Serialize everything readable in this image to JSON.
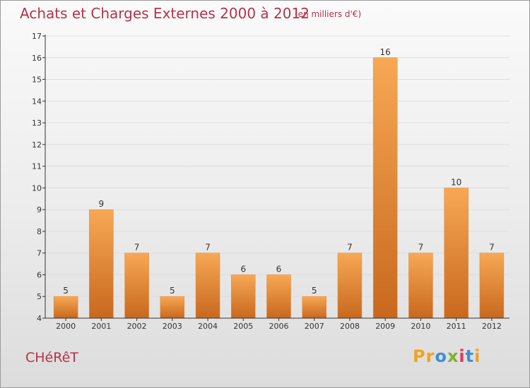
{
  "header": {
    "title": "Achats et Charges Externes 2000 à 2012",
    "unit": "(en milliers d'€)"
  },
  "footer": {
    "place": "CHéRêT",
    "brand_letters": [
      "P",
      "r",
      "o",
      "x",
      "i",
      "t",
      "i"
    ],
    "brand_colors": [
      "#f2a21c",
      "#f2a21c",
      "#3d8fd6",
      "#7ab32e",
      "#e8365d",
      "#3d8fd6",
      "#f2a21c"
    ]
  },
  "colors": {
    "bar_light": "#f7a855",
    "bar_dark": "#c8681e",
    "axis": "#333333",
    "grid": "#dedede",
    "text_accent": "#b8324a"
  },
  "chart_data": {
    "type": "bar",
    "title": "Achats et Charges Externes 2000 à 2012",
    "subtitle": "(en milliers d'€)",
    "xlabel": "",
    "ylabel": "",
    "categories": [
      "2000",
      "2001",
      "2002",
      "2003",
      "2004",
      "2005",
      "2006",
      "2007",
      "2008",
      "2009",
      "2010",
      "2011",
      "2012"
    ],
    "values": [
      5,
      9,
      7,
      5,
      7,
      6,
      6,
      5,
      7,
      16,
      7,
      10,
      7
    ],
    "ylim": [
      4,
      17
    ],
    "yticks": [
      4,
      5,
      6,
      7,
      8,
      9,
      10,
      11,
      12,
      13,
      14,
      15,
      16,
      17
    ],
    "grid": "horizontal",
    "data_labels": true
  }
}
